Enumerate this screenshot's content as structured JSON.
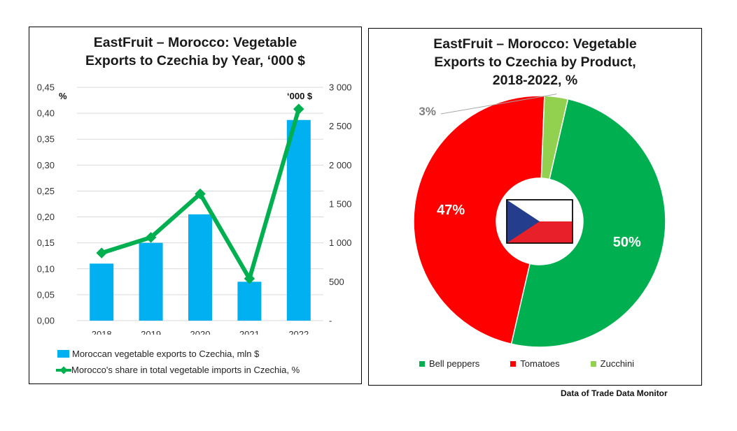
{
  "source_note": "Data of Trade Data Monitor",
  "left_chart": {
    "title_lines": [
      "EastFruit – Morocco: Vegetable",
      "Exports to Czechia by Year, ‘000 $"
    ],
    "left_axis_unit": "%",
    "right_axis_unit": "‘000 $",
    "left_ticks": [
      "0,00",
      "0,05",
      "0,10",
      "0,15",
      "0,20",
      "0,25",
      "0,30",
      "0,35",
      "0,40",
      "0,45"
    ],
    "right_ticks": [
      "-",
      "500",
      "1 000",
      "1 500",
      "2 000",
      "2 500",
      "3 000"
    ],
    "bar_color": "#00b0f0",
    "line_color": "#00b050",
    "legend": {
      "bars": "Moroccan vegetable exports to Czechia, mln $",
      "line": "Morocco's share in total vegetable imports in Czechia, %"
    }
  },
  "right_chart": {
    "title_lines": [
      "EastFruit – Morocco: Vegetable",
      "Exports to Czechia by Product,",
      "2018-2022, %"
    ],
    "legend_labels": [
      "Bell peppers",
      "Tomatoes",
      "Zucchini"
    ]
  },
  "chart_data": [
    {
      "type": "bar",
      "categories": [
        "2018",
        "2019",
        "2020",
        "2021",
        "2022"
      ],
      "series": [
        {
          "name": "Moroccan vegetable exports to Czechia, mln $",
          "type": "bar",
          "axis": "left",
          "values": [
            0.11,
            0.15,
            0.205,
            0.075,
            0.387
          ]
        },
        {
          "name": "Morocco's share in total vegetable imports in Czechia, %",
          "type": "line",
          "axis": "right",
          "values": [
            870,
            1070,
            1630,
            540,
            2720
          ]
        }
      ],
      "ylim_left": [
        0,
        0.45
      ],
      "ylim_right": [
        0,
        3000
      ],
      "grid": true,
      "legend_position": "bottom"
    },
    {
      "type": "pie",
      "donut": true,
      "labels": [
        "Bell peppers",
        "Tomatoes",
        "Zucchini"
      ],
      "values": [
        50,
        47,
        3
      ],
      "value_labels": [
        "50%",
        "47%",
        "3%"
      ],
      "colors": [
        "#00b050",
        "#ff0000",
        "#92d050"
      ],
      "legend_position": "bottom"
    }
  ]
}
